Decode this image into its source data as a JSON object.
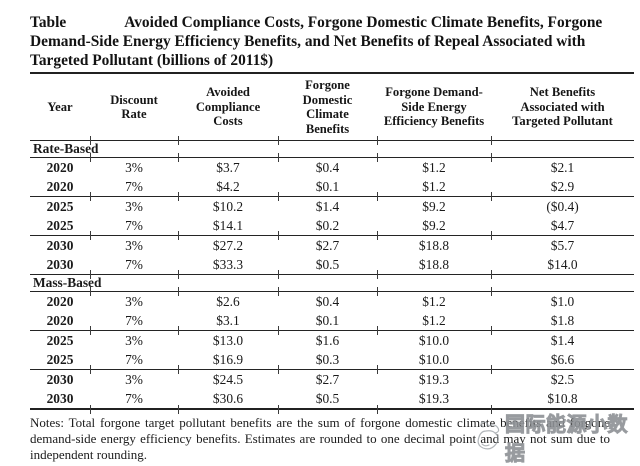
{
  "doc": {
    "title_label": "Table",
    "title_lines": [
      "Avoided Compliance Costs, Forgone Domestic Climate Benefits, Forgone",
      "Demand-Side Energy Efficiency Benefits, and Net Benefits of Repeal Associated with",
      "Targeted Pollutant (billions of 2011$)"
    ],
    "notes": "Notes: Total forgone target pollutant benefits are the sum of forgone domestic climate benefits and forgone demand-side energy efficiency benefits. Estimates are rounded to one decimal point and may not sum due to independent rounding.",
    "watermark_text": "国际能源小数据"
  },
  "table": {
    "columns": [
      "Year",
      "Discount\nRate",
      "Avoided\nCompliance\nCosts",
      "Forgone\nDomestic\nClimate\nBenefits",
      "Forgone Demand-\nSide Energy\nEfficiency Benefits",
      "Net Benefits\nAssociated with\nTargeted Pollutant"
    ],
    "sections": [
      {
        "label": "Rate-Based",
        "rows": [
          [
            "2020",
            "3%",
            "$3.7",
            "$0.4",
            "$1.2",
            "$2.1"
          ],
          [
            "2020",
            "7%",
            "$4.2",
            "$0.1",
            "$1.2",
            "$2.9"
          ],
          [
            "2025",
            "3%",
            "$10.2",
            "$1.4",
            "$9.2",
            "($0.4)"
          ],
          [
            "2025",
            "7%",
            "$14.1",
            "$0.2",
            "$9.2",
            "$4.7"
          ],
          [
            "2030",
            "3%",
            "$27.2",
            "$2.7",
            "$18.8",
            "$5.7"
          ],
          [
            "2030",
            "7%",
            "$33.3",
            "$0.5",
            "$18.8",
            "$14.0"
          ]
        ]
      },
      {
        "label": "Mass-Based",
        "rows": [
          [
            "2020",
            "3%",
            "$2.6",
            "$0.4",
            "$1.2",
            "$1.0"
          ],
          [
            "2020",
            "7%",
            "$3.1",
            "$0.1",
            "$1.2",
            "$1.8"
          ],
          [
            "2025",
            "3%",
            "$13.0",
            "$1.6",
            "$10.0",
            "$1.4"
          ],
          [
            "2025",
            "7%",
            "$16.9",
            "$0.3",
            "$10.0",
            "$6.6"
          ],
          [
            "2030",
            "3%",
            "$24.5",
            "$2.7",
            "$19.3",
            "$2.5"
          ],
          [
            "2030",
            "7%",
            "$30.6",
            "$0.5",
            "$19.3",
            "$10.8"
          ]
        ]
      }
    ]
  }
}
